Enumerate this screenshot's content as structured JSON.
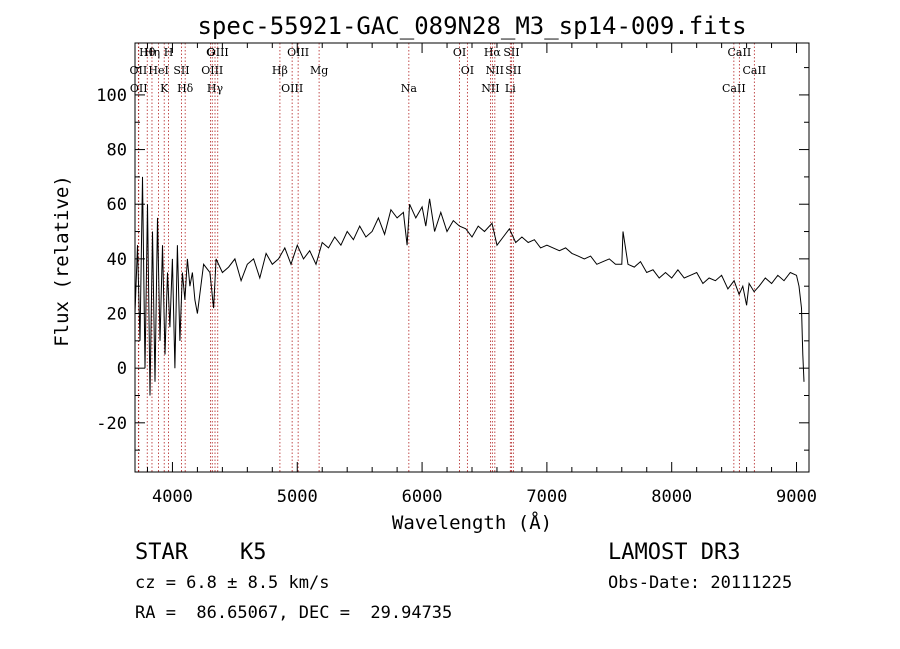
{
  "chart_data": {
    "type": "line",
    "title": "spec-55921-GAC_089N28_M3_sp14-009.fits",
    "xlabel": "Wavelength (Å)",
    "ylabel": "Flux (relative)",
    "xlim": [
      3700,
      9100
    ],
    "ylim": [
      -38,
      119
    ],
    "xticks": [
      4000,
      5000,
      6000,
      7000,
      8000,
      9000
    ],
    "yticks": [
      -20,
      0,
      20,
      40,
      60,
      80,
      100
    ],
    "series": [
      {
        "name": "flux",
        "x": [
          3700,
          3720,
          3740,
          3760,
          3780,
          3800,
          3820,
          3840,
          3860,
          3880,
          3900,
          3920,
          3940,
          3960,
          3980,
          4000,
          4020,
          4040,
          4060,
          4080,
          4100,
          4120,
          4140,
          4160,
          4180,
          4200,
          4250,
          4300,
          4330,
          4350,
          4400,
          4450,
          4500,
          4550,
          4600,
          4650,
          4700,
          4750,
          4800,
          4850,
          4900,
          4950,
          5000,
          5050,
          5100,
          5150,
          5200,
          5250,
          5300,
          5350,
          5400,
          5450,
          5500,
          5550,
          5600,
          5650,
          5700,
          5750,
          5800,
          5850,
          5880,
          5900,
          5950,
          6000,
          6030,
          6060,
          6100,
          6150,
          6200,
          6250,
          6300,
          6350,
          6400,
          6450,
          6500,
          6560,
          6600,
          6650,
          6700,
          6750,
          6800,
          6850,
          6900,
          6950,
          7000,
          7050,
          7100,
          7150,
          7200,
          7250,
          7300,
          7350,
          7400,
          7450,
          7500,
          7550,
          7600,
          7610,
          7650,
          7700,
          7750,
          7800,
          7850,
          7900,
          7950,
          8000,
          8050,
          8100,
          8150,
          8200,
          8250,
          8300,
          8350,
          8400,
          8450,
          8500,
          8540,
          8570,
          8600,
          8620,
          8660,
          8700,
          8750,
          8800,
          8850,
          8900,
          8950,
          9000,
          9020,
          9040,
          9050,
          9060
        ],
        "values": [
          20,
          45,
          10,
          70,
          0,
          60,
          -10,
          50,
          -5,
          55,
          10,
          45,
          5,
          35,
          15,
          40,
          0,
          45,
          10,
          35,
          25,
          40,
          30,
          35,
          25,
          20,
          38,
          35,
          22,
          40,
          35,
          37,
          40,
          32,
          38,
          40,
          33,
          42,
          38,
          40,
          44,
          38,
          45,
          40,
          43,
          38,
          46,
          44,
          48,
          45,
          50,
          47,
          52,
          48,
          50,
          55,
          49,
          58,
          55,
          57,
          45,
          60,
          55,
          59,
          52,
          62,
          50,
          57,
          50,
          54,
          52,
          51,
          48,
          52,
          50,
          53,
          45,
          48,
          51,
          46,
          48,
          46,
          47,
          44,
          45,
          44,
          43,
          44,
          42,
          41,
          40,
          41,
          38,
          39,
          40,
          38,
          38,
          50,
          38,
          37,
          39,
          35,
          36,
          33,
          35,
          33,
          36,
          33,
          34,
          35,
          31,
          33,
          32,
          34,
          29,
          32,
          27,
          30,
          23,
          31,
          28,
          30,
          33,
          31,
          34,
          32,
          35,
          34,
          30,
          22,
          5,
          -5
        ]
      }
    ],
    "line_markers": [
      {
        "label": "Hθ",
        "wavelength": 3798
      },
      {
        "label": "OII",
        "wavelength": 3727
      },
      {
        "label": "OII",
        "wavelength": 3730
      },
      {
        "label": "Hη",
        "wavelength": 3836
      },
      {
        "label": "HeI",
        "wavelength": 3889
      },
      {
        "label": "K",
        "wavelength": 3934
      },
      {
        "label": "H",
        "wavelength": 3969
      },
      {
        "label": "SII",
        "wavelength": 4072
      },
      {
        "label": "Hδ",
        "wavelength": 4102
      },
      {
        "label": "G",
        "wavelength": 4305
      },
      {
        "label": "OIII",
        "wavelength": 4319
      },
      {
        "label": "Hγ",
        "wavelength": 4341
      },
      {
        "label": "OIII",
        "wavelength": 4363
      },
      {
        "label": "Hβ",
        "wavelength": 4861
      },
      {
        "label": "OIII",
        "wavelength": 4959
      },
      {
        "label": "OIII",
        "wavelength": 5007
      },
      {
        "label": "Mg",
        "wavelength": 5175
      },
      {
        "label": "Na",
        "wavelength": 5894
      },
      {
        "label": "OI",
        "wavelength": 6300
      },
      {
        "label": "OI",
        "wavelength": 6363
      },
      {
        "label": "NII",
        "wavelength": 6548
      },
      {
        "label": "Hα",
        "wavelength": 6563
      },
      {
        "label": "NII",
        "wavelength": 6583
      },
      {
        "label": "Li",
        "wavelength": 6707
      },
      {
        "label": "SII",
        "wavelength": 6716
      },
      {
        "label": "SII",
        "wavelength": 6731
      },
      {
        "label": "CaII",
        "wavelength": 8498
      },
      {
        "label": "CaII",
        "wavelength": 8542
      },
      {
        "label": "CaII",
        "wavelength": 8662
      }
    ],
    "colors": {
      "line": "#000000",
      "marker": "#b22222",
      "axis": "#000000"
    }
  },
  "footer": {
    "object_class": "STAR",
    "subclass": "K5",
    "survey": "LAMOST DR3",
    "redshift": "cz = 6.8 ± 8.5 km/s",
    "obs_date": "Obs-Date: 20111225",
    "coords": "RA =  86.65067, DEC =  29.94735"
  }
}
